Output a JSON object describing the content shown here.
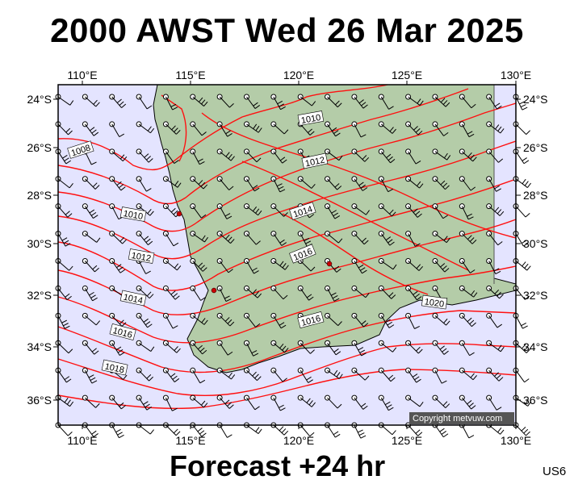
{
  "title": "2000 AWST Wed 26 Mar 2025",
  "footer": "Forecast +24 hr",
  "station": "US6",
  "copyright": "Copyright metvuw.com",
  "map": {
    "lon_ticks": [
      "110°E",
      "115°E",
      "120°E",
      "125°E",
      "130°E"
    ],
    "lat_ticks": [
      "24°S",
      "26°S",
      "28°S",
      "30°S",
      "32°S",
      "34°S",
      "36°S"
    ],
    "sea_color": "#e4e4ff",
    "land_color": "#b4cca8",
    "isobar_color": "#ff1010",
    "isobar_labels": [
      "1008",
      "1010",
      "1010",
      "1012",
      "1012",
      "1014",
      "1014",
      "1016",
      "1016",
      "1016",
      "1018",
      "1020"
    ]
  }
}
